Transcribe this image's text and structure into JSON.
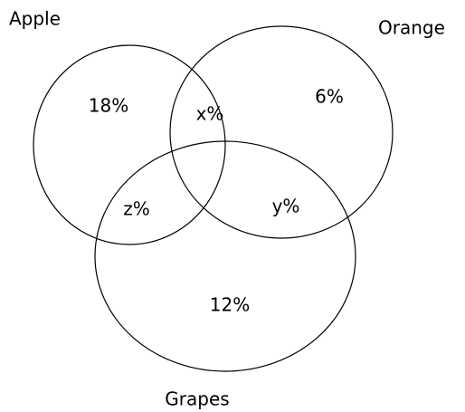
{
  "sets": [
    {
      "label": "Apple"
    },
    {
      "label": "Orange"
    },
    {
      "label": "Grapes"
    }
  ],
  "regions": [
    {
      "label": "18%"
    },
    {
      "label": "x%"
    },
    {
      "label": "6%"
    },
    {
      "label": "z%"
    },
    {
      "label": "y%"
    },
    {
      "label": "12%"
    }
  ]
}
